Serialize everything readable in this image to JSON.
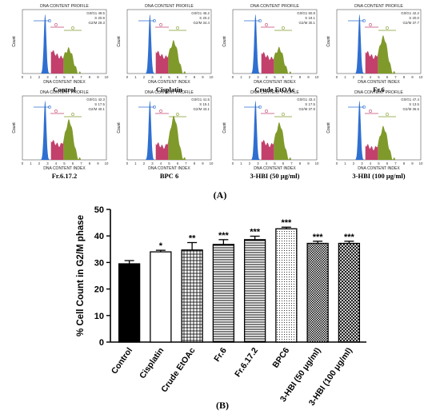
{
  "flow_panels": {
    "profile_title": "DNA CONTENT PROFILE",
    "x_axis_label": "DNA CONTENT INDEX",
    "y_axis_label": "Count",
    "x_ticks": [
      "0",
      "1",
      "2",
      "3",
      "4",
      "5",
      "6",
      "7",
      "8",
      "9",
      "10"
    ],
    "panels": [
      {
        "label": "Control",
        "stats": [
          "G0/G1 49.5",
          "S 20.9",
          "G2/M 29.3"
        ]
      },
      {
        "label": "Cisplatin",
        "stats": [
          "G0/G1 45.2",
          "S 20.2",
          "G2/M 34.4"
        ]
      },
      {
        "label": "Crude EtOAc",
        "stats": [
          "G0/G1 50.8",
          "S 19.1",
          "G2/M 30.1"
        ]
      },
      {
        "label": "Fr.6",
        "stats": [
          "G0/G1 42.2",
          "S 20.0",
          "G2/M 37.7"
        ]
      },
      {
        "label": "Fr.6.17.2",
        "stats": [
          "G0/G1 42.3",
          "S 17.5",
          "G2/M 40.1"
        ]
      },
      {
        "label": "BPC 6",
        "stats": [
          "G0/G1 41.5",
          "S 15.1",
          "G2/M 43.1"
        ]
      },
      {
        "label": "3-HBI (50 μg/ml)",
        "stats": [
          "G0/G1 43.4",
          "S 17.5",
          "G2/M 37.9"
        ]
      },
      {
        "label": "3-HBI (100 μg/ml)",
        "stats": [
          "G0/G1 47.4",
          "S 13.5",
          "G2/M 36.5"
        ]
      }
    ]
  },
  "panel_a_label": "(A)",
  "panel_b_label": "(B)",
  "chart_data": {
    "type": "bar",
    "ylabel": "% Cell Count in G2/M phase",
    "xlabel": "",
    "ylim": [
      0,
      50
    ],
    "yticks": [
      "0",
      "10",
      "20",
      "30",
      "40",
      "50"
    ],
    "categories": [
      "Control",
      "Cisplatin",
      "Crude EtOAc",
      "Fr.6",
      "Fr.6.17.2",
      "BPC6",
      "3-HBI (50 μg/ml)",
      "3-HBI (100 μg/ml)"
    ],
    "values": [
      29.5,
      34,
      34.7,
      36.8,
      38.6,
      42.7,
      37.2,
      37.2
    ],
    "errors": [
      1.2,
      0.6,
      2.8,
      1.8,
      1.3,
      0.6,
      0.8,
      0.8
    ],
    "significance": [
      "",
      "*",
      "**",
      "***",
      "***",
      "***",
      "***",
      "***"
    ],
    "fill_patterns": [
      "solid-black",
      "white",
      "grid",
      "horizontal-lines",
      "horizontal-lines",
      "dots",
      "dense-grid",
      "crosshatch"
    ]
  }
}
